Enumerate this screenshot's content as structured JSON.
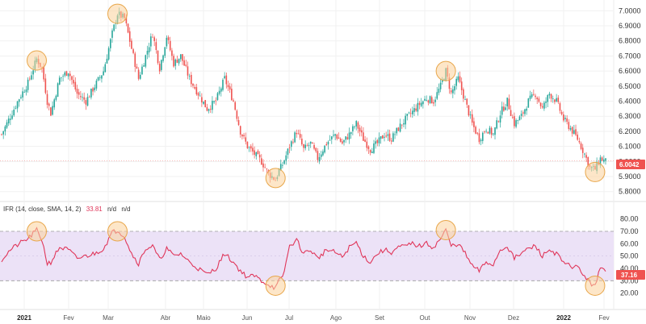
{
  "colors": {
    "up": "#26a69a",
    "down": "#ef5350",
    "rsi_line": "#e0365a",
    "rsi_band": "#ece2f7",
    "highlight_fill": "#fbd29a",
    "highlight_stroke": "#e8a64a",
    "grid": "#f1f1f1",
    "last_tag": "#ef5350"
  },
  "chart_data": [
    {
      "type": "candlestick",
      "panel": "price",
      "ylim": [
        5.82,
        7.05
      ],
      "y_ticks": [
        "7.0000",
        "6.9000",
        "6.8000",
        "6.7000",
        "6.6000",
        "6.5000",
        "6.4000",
        "6.3000",
        "6.2000",
        "6.1000",
        "6.0000",
        "5.9000",
        "5.8000"
      ],
      "last_value": "6.0042",
      "x_months": [
        "2021",
        "Fev",
        "Mar",
        "Abr",
        "Maio",
        "Jun",
        "Jul",
        "Ago",
        "Set",
        "Out",
        "Nov",
        "Dez",
        "2022",
        "Fev"
      ],
      "close_path": [
        {
          "x": 0,
          "y": 6.18
        },
        {
          "x": 5,
          "y": 6.3
        },
        {
          "x": 10,
          "y": 6.42
        },
        {
          "x": 15,
          "y": 6.52
        },
        {
          "x": 20,
          "y": 6.68
        },
        {
          "x": 23,
          "y": 6.62
        },
        {
          "x": 26,
          "y": 6.4
        },
        {
          "x": 28,
          "y": 6.32
        },
        {
          "x": 33,
          "y": 6.55
        },
        {
          "x": 38,
          "y": 6.6
        },
        {
          "x": 43,
          "y": 6.45
        },
        {
          "x": 48,
          "y": 6.4
        },
        {
          "x": 53,
          "y": 6.5
        },
        {
          "x": 58,
          "y": 6.6
        },
        {
          "x": 63,
          "y": 6.85
        },
        {
          "x": 66,
          "y": 6.98
        },
        {
          "x": 70,
          "y": 6.95
        },
        {
          "x": 74,
          "y": 6.75
        },
        {
          "x": 78,
          "y": 6.55
        },
        {
          "x": 82,
          "y": 6.7
        },
        {
          "x": 86,
          "y": 6.85
        },
        {
          "x": 90,
          "y": 6.62
        },
        {
          "x": 94,
          "y": 6.83
        },
        {
          "x": 98,
          "y": 6.65
        },
        {
          "x": 102,
          "y": 6.7
        },
        {
          "x": 107,
          "y": 6.55
        },
        {
          "x": 112,
          "y": 6.45
        },
        {
          "x": 117,
          "y": 6.35
        },
        {
          "x": 122,
          "y": 6.4
        },
        {
          "x": 127,
          "y": 6.55
        },
        {
          "x": 132,
          "y": 6.4
        },
        {
          "x": 136,
          "y": 6.2
        },
        {
          "x": 140,
          "y": 6.1
        },
        {
          "x": 144,
          "y": 6.05
        },
        {
          "x": 148,
          "y": 6.0
        },
        {
          "x": 152,
          "y": 5.92
        },
        {
          "x": 156,
          "y": 5.88
        },
        {
          "x": 158,
          "y": 5.94
        },
        {
          "x": 160,
          "y": 5.98
        },
        {
          "x": 164,
          "y": 6.1
        },
        {
          "x": 168,
          "y": 6.2
        },
        {
          "x": 172,
          "y": 6.08
        },
        {
          "x": 176,
          "y": 6.12
        },
        {
          "x": 180,
          "y": 6.02
        },
        {
          "x": 185,
          "y": 6.12
        },
        {
          "x": 190,
          "y": 6.18
        },
        {
          "x": 194,
          "y": 6.12
        },
        {
          "x": 198,
          "y": 6.18
        },
        {
          "x": 202,
          "y": 6.25
        },
        {
          "x": 206,
          "y": 6.15
        },
        {
          "x": 210,
          "y": 6.08
        },
        {
          "x": 214,
          "y": 6.12
        },
        {
          "x": 218,
          "y": 6.18
        },
        {
          "x": 222,
          "y": 6.15
        },
        {
          "x": 226,
          "y": 6.22
        },
        {
          "x": 230,
          "y": 6.28
        },
        {
          "x": 234,
          "y": 6.33
        },
        {
          "x": 238,
          "y": 6.38
        },
        {
          "x": 242,
          "y": 6.42
        },
        {
          "x": 246,
          "y": 6.4
        },
        {
          "x": 250,
          "y": 6.5
        },
        {
          "x": 253,
          "y": 6.6
        },
        {
          "x": 256,
          "y": 6.45
        },
        {
          "x": 260,
          "y": 6.55
        },
        {
          "x": 264,
          "y": 6.4
        },
        {
          "x": 268,
          "y": 6.25
        },
        {
          "x": 272,
          "y": 6.15
        },
        {
          "x": 276,
          "y": 6.22
        },
        {
          "x": 280,
          "y": 6.18
        },
        {
          "x": 284,
          "y": 6.32
        },
        {
          "x": 288,
          "y": 6.4
        },
        {
          "x": 292,
          "y": 6.25
        },
        {
          "x": 296,
          "y": 6.3
        },
        {
          "x": 300,
          "y": 6.4
        },
        {
          "x": 304,
          "y": 6.45
        },
        {
          "x": 308,
          "y": 6.35
        },
        {
          "x": 312,
          "y": 6.45
        },
        {
          "x": 316,
          "y": 6.4
        },
        {
          "x": 320,
          "y": 6.28
        },
        {
          "x": 324,
          "y": 6.22
        },
        {
          "x": 328,
          "y": 6.15
        },
        {
          "x": 332,
          "y": 6.05
        },
        {
          "x": 335,
          "y": 5.96
        },
        {
          "x": 338,
          "y": 5.95
        },
        {
          "x": 341,
          "y": 6.02
        },
        {
          "x": 344,
          "y": 6.0
        }
      ]
    },
    {
      "type": "line",
      "panel": "rsi",
      "legend": {
        "name": "IFR (14, close, SMA, 14, 2)",
        "value": "33.81",
        "extra1": "n/d",
        "extra2": "n/d"
      },
      "ylim": [
        10,
        85
      ],
      "y_ticks": [
        "80.00",
        "70.00",
        "60.00",
        "50.00",
        "40.00",
        "30.00",
        "20.00"
      ],
      "band": [
        30,
        70
      ],
      "last_value": "37.16",
      "points": [
        {
          "x": 0,
          "y": 47
        },
        {
          "x": 5,
          "y": 55
        },
        {
          "x": 10,
          "y": 60
        },
        {
          "x": 15,
          "y": 64
        },
        {
          "x": 20,
          "y": 71
        },
        {
          "x": 23,
          "y": 63
        },
        {
          "x": 26,
          "y": 44
        },
        {
          "x": 28,
          "y": 45
        },
        {
          "x": 33,
          "y": 57
        },
        {
          "x": 38,
          "y": 55
        },
        {
          "x": 43,
          "y": 48
        },
        {
          "x": 48,
          "y": 50
        },
        {
          "x": 53,
          "y": 52
        },
        {
          "x": 58,
          "y": 56
        },
        {
          "x": 63,
          "y": 69
        },
        {
          "x": 66,
          "y": 71
        },
        {
          "x": 70,
          "y": 66
        },
        {
          "x": 74,
          "y": 52
        },
        {
          "x": 78,
          "y": 44
        },
        {
          "x": 82,
          "y": 56
        },
        {
          "x": 86,
          "y": 58
        },
        {
          "x": 90,
          "y": 47
        },
        {
          "x": 94,
          "y": 56
        },
        {
          "x": 98,
          "y": 50
        },
        {
          "x": 102,
          "y": 52
        },
        {
          "x": 107,
          "y": 45
        },
        {
          "x": 112,
          "y": 40
        },
        {
          "x": 117,
          "y": 35
        },
        {
          "x": 122,
          "y": 40
        },
        {
          "x": 127,
          "y": 52
        },
        {
          "x": 132,
          "y": 45
        },
        {
          "x": 136,
          "y": 38
        },
        {
          "x": 140,
          "y": 33
        },
        {
          "x": 144,
          "y": 34
        },
        {
          "x": 148,
          "y": 30
        },
        {
          "x": 152,
          "y": 27
        },
        {
          "x": 156,
          "y": 24
        },
        {
          "x": 158,
          "y": 30
        },
        {
          "x": 160,
          "y": 32
        },
        {
          "x": 164,
          "y": 58
        },
        {
          "x": 168,
          "y": 63
        },
        {
          "x": 172,
          "y": 52
        },
        {
          "x": 176,
          "y": 55
        },
        {
          "x": 180,
          "y": 48
        },
        {
          "x": 185,
          "y": 55
        },
        {
          "x": 190,
          "y": 53
        },
        {
          "x": 194,
          "y": 49
        },
        {
          "x": 198,
          "y": 57
        },
        {
          "x": 202,
          "y": 61
        },
        {
          "x": 206,
          "y": 50
        },
        {
          "x": 210,
          "y": 45
        },
        {
          "x": 214,
          "y": 52
        },
        {
          "x": 218,
          "y": 55
        },
        {
          "x": 222,
          "y": 53
        },
        {
          "x": 226,
          "y": 57
        },
        {
          "x": 230,
          "y": 58
        },
        {
          "x": 234,
          "y": 60
        },
        {
          "x": 238,
          "y": 58
        },
        {
          "x": 242,
          "y": 60
        },
        {
          "x": 246,
          "y": 57
        },
        {
          "x": 250,
          "y": 64
        },
        {
          "x": 253,
          "y": 71
        },
        {
          "x": 256,
          "y": 58
        },
        {
          "x": 260,
          "y": 60
        },
        {
          "x": 264,
          "y": 52
        },
        {
          "x": 268,
          "y": 42
        },
        {
          "x": 272,
          "y": 38
        },
        {
          "x": 276,
          "y": 45
        },
        {
          "x": 280,
          "y": 43
        },
        {
          "x": 284,
          "y": 55
        },
        {
          "x": 288,
          "y": 58
        },
        {
          "x": 292,
          "y": 48
        },
        {
          "x": 296,
          "y": 52
        },
        {
          "x": 300,
          "y": 56
        },
        {
          "x": 304,
          "y": 58
        },
        {
          "x": 308,
          "y": 50
        },
        {
          "x": 312,
          "y": 55
        },
        {
          "x": 316,
          "y": 52
        },
        {
          "x": 320,
          "y": 44
        },
        {
          "x": 324,
          "y": 42
        },
        {
          "x": 328,
          "y": 41
        },
        {
          "x": 332,
          "y": 34
        },
        {
          "x": 335,
          "y": 28
        },
        {
          "x": 338,
          "y": 27
        },
        {
          "x": 341,
          "y": 40
        },
        {
          "x": 344,
          "y": 37
        }
      ]
    }
  ],
  "highlights": [
    {
      "panel": "price",
      "x": 20,
      "y": 6.67
    },
    {
      "panel": "price",
      "x": 66,
      "y": 6.98
    },
    {
      "panel": "price",
      "x": 156,
      "y": 5.89
    },
    {
      "panel": "price",
      "x": 253,
      "y": 6.6
    },
    {
      "panel": "price",
      "x": 338,
      "y": 5.93
    },
    {
      "panel": "rsi",
      "x": 20,
      "y": 70
    },
    {
      "panel": "rsi",
      "x": 66,
      "y": 70
    },
    {
      "panel": "rsi",
      "x": 156,
      "y": 26
    },
    {
      "panel": "rsi",
      "x": 253,
      "y": 71
    },
    {
      "panel": "rsi",
      "x": 338,
      "y": 26
    }
  ]
}
